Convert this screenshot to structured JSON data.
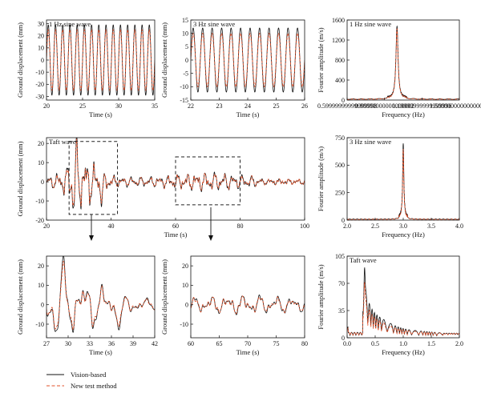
{
  "legend": {
    "items": [
      {
        "label": "Vision-based",
        "color": "#111111",
        "style": "solid"
      },
      {
        "label": "New test method",
        "color": "#e0502a",
        "style": "dashed"
      }
    ]
  },
  "chart_data": [
    {
      "id": "p1",
      "type": "line",
      "title": "1 Hz sine wave",
      "xlabel": "Time (s)",
      "ylabel": "Ground displacement (mm)",
      "xlim": [
        20,
        35
      ],
      "ylim": [
        -33,
        33
      ],
      "xticks": [
        20,
        25,
        30,
        35
      ],
      "yticks": [
        -30,
        -20,
        -10,
        0,
        10,
        20,
        30
      ],
      "signal": {
        "kind": "sine",
        "freq": 1,
        "amplitudes": [
          29,
          25
        ],
        "sample_step": 0.02
      },
      "series": [
        {
          "label": "Vision-based",
          "color": "#111111"
        },
        {
          "label": "New test method",
          "color": "#e0502a"
        }
      ]
    },
    {
      "id": "p2",
      "type": "line",
      "title": "3 Hz sine wave",
      "xlabel": "Time (s)",
      "ylabel": "Ground displacement (mm)",
      "xlim": [
        22,
        26
      ],
      "ylim": [
        -15,
        15
      ],
      "xticks": [
        22,
        23,
        24,
        25,
        26
      ],
      "yticks": [
        -15,
        -10,
        -5,
        0,
        5,
        10,
        15
      ],
      "signal": {
        "kind": "sine",
        "freq": 3,
        "amplitudes": [
          12,
          10
        ],
        "sample_step": 0.005
      },
      "series": [
        {
          "label": "Vision-based",
          "color": "#111111"
        },
        {
          "label": "New test method",
          "color": "#e0502a"
        }
      ]
    },
    {
      "id": "p3",
      "type": "line",
      "title": "1 Hz sine wave",
      "xlabel": "Frequency (Hz)",
      "ylabel": "Fourier amplitude (m/s)",
      "xlim": [
        0.6,
        1.5
      ],
      "ylim": [
        0,
        1600
      ],
      "xticks": [
        0.6,
        0.9,
        1.2,
        1.5
      ],
      "yticks": [
        0,
        400,
        800,
        1200,
        1600
      ],
      "signal": {
        "kind": "peak",
        "center": 1.0,
        "heights": [
          1450,
          1400
        ],
        "width": 0.01,
        "base": 18
      },
      "series": [
        {
          "label": "Vision-based",
          "color": "#111111"
        },
        {
          "label": "New test method",
          "color": "#e0502a"
        }
      ]
    },
    {
      "id": "p4",
      "type": "line",
      "title": "Taft wave",
      "xlabel": "Time (s)",
      "ylabel": "Ground displacement (mm)",
      "xlim": [
        20,
        100
      ],
      "ylim": [
        -20,
        23
      ],
      "xticks": [
        20,
        40,
        60,
        80,
        100
      ],
      "yticks": [
        -20,
        -10,
        0,
        10,
        20
      ],
      "signal": {
        "kind": "taft",
        "sample_step": 0.05
      },
      "annotations": {
        "boxes": [
          {
            "x": [
              27,
              42
            ],
            "y": [
              -17,
              21
            ]
          },
          {
            "x": [
              60,
              80
            ],
            "y": [
              -12,
              13
            ]
          }
        ]
      },
      "series": [
        {
          "label": "Vision-based",
          "color": "#111111"
        },
        {
          "label": "New test method",
          "color": "#e0502a"
        }
      ]
    },
    {
      "id": "p5",
      "type": "line",
      "title": "3 Hz sine wave",
      "xlabel": "Frequency (Hz)",
      "ylabel": "Fourier amplitude (m/s)",
      "xlim": [
        2.0,
        4.0
      ],
      "ylim": [
        0,
        750
      ],
      "xticks": [
        2.0,
        2.5,
        3.0,
        3.5,
        4.0
      ],
      "yticks": [
        0,
        250,
        500,
        750
      ],
      "signal": {
        "kind": "peak",
        "center": 3.0,
        "heights": [
          690,
          640
        ],
        "width": 0.012,
        "base": 8
      },
      "series": [
        {
          "label": "Vision-based",
          "color": "#111111"
        },
        {
          "label": "New test method",
          "color": "#e0502a"
        }
      ]
    },
    {
      "id": "p6",
      "type": "line",
      "title": "",
      "xlabel": "Time (s)",
      "ylabel": "Ground displacement (mm)",
      "xlim": [
        27,
        42
      ],
      "ylim": [
        -17,
        25
      ],
      "xticks": [
        27,
        30,
        33,
        36,
        39,
        42
      ],
      "yticks": [
        -10,
        0,
        10,
        20
      ],
      "signal": {
        "kind": "taft",
        "sample_step": 0.02
      },
      "series": [
        {
          "label": "Vision-based",
          "color": "#111111"
        },
        {
          "label": "New test method",
          "color": "#e0502a"
        }
      ]
    },
    {
      "id": "p7",
      "type": "line",
      "title": "",
      "xlabel": "Time (s)",
      "ylabel": "Ground displacement (mm)",
      "xlim": [
        60,
        80
      ],
      "ylim": [
        -17,
        25
      ],
      "xticks": [
        60,
        65,
        70,
        75,
        80
      ],
      "yticks": [
        -10,
        0,
        10,
        20
      ],
      "signal": {
        "kind": "taft",
        "sample_step": 0.02
      },
      "series": [
        {
          "label": "Vision-based",
          "color": "#111111"
        },
        {
          "label": "New test method",
          "color": "#e0502a"
        }
      ]
    },
    {
      "id": "p8",
      "type": "line",
      "title": "Taft wave",
      "xlabel": "Frequency (Hz)",
      "ylabel": "Fourier amplitude (m/s)",
      "xlim": [
        0,
        2.0
      ],
      "ylim": [
        0,
        105
      ],
      "xticks": [
        0.0,
        0.5,
        1.0,
        1.5,
        2.0
      ],
      "yticks": [
        0,
        35,
        70,
        105
      ],
      "signal": {
        "kind": "spectrum",
        "sample_step": 0.004
      },
      "series": [
        {
          "label": "Vision-based",
          "color": "#111111"
        },
        {
          "label": "New test method",
          "color": "#e0502a"
        }
      ]
    }
  ]
}
